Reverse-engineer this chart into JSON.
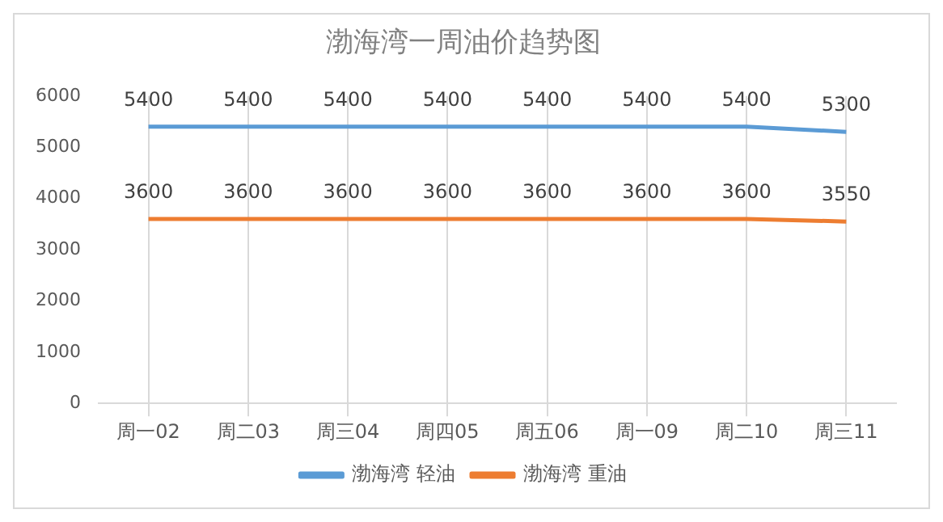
{
  "chart_data": {
    "type": "line",
    "title": "渤海湾一周油价趋势图",
    "categories": [
      "周一02",
      "周二03",
      "周三04",
      "周四05",
      "周五06",
      "周一09",
      "周二10",
      "周三11"
    ],
    "series": [
      {
        "name": "渤海湾 轻油",
        "color": "#5b9bd5",
        "values": [
          5400,
          5400,
          5400,
          5400,
          5400,
          5400,
          5400,
          5300
        ]
      },
      {
        "name": "渤海湾 重油",
        "color": "#ed7d31",
        "values": [
          3600,
          3600,
          3600,
          3600,
          3600,
          3600,
          3600,
          3550
        ]
      }
    ],
    "ylim": [
      0,
      6000
    ],
    "yticks": [
      0,
      1000,
      2000,
      3000,
      4000,
      5000,
      6000
    ],
    "grid": "x",
    "legend": "bottom",
    "data_labels": true,
    "marker": "none",
    "line_style": "solid"
  }
}
